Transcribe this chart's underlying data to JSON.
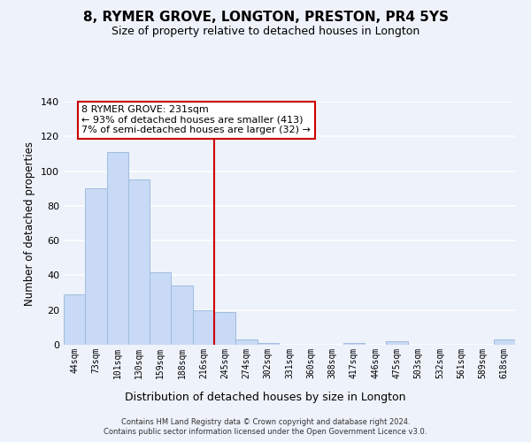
{
  "title": "8, RYMER GROVE, LONGTON, PRESTON, PR4 5YS",
  "subtitle": "Size of property relative to detached houses in Longton",
  "xlabel": "Distribution of detached houses by size in Longton",
  "ylabel": "Number of detached properties",
  "bar_labels": [
    "44sqm",
    "73sqm",
    "101sqm",
    "130sqm",
    "159sqm",
    "188sqm",
    "216sqm",
    "245sqm",
    "274sqm",
    "302sqm",
    "331sqm",
    "360sqm",
    "388sqm",
    "417sqm",
    "446sqm",
    "475sqm",
    "503sqm",
    "532sqm",
    "561sqm",
    "589sqm",
    "618sqm"
  ],
  "bar_values": [
    29,
    90,
    111,
    95,
    42,
    34,
    20,
    19,
    3,
    1,
    0,
    0,
    0,
    1,
    0,
    2,
    0,
    0,
    0,
    0,
    3
  ],
  "bar_color": "#c8daf5",
  "bar_edge_color": "#a0bce0",
  "ylim": [
    0,
    140
  ],
  "yticks": [
    0,
    20,
    40,
    60,
    80,
    100,
    120,
    140
  ],
  "property_line_x": 6.5,
  "property_line_color": "#cc0000",
  "annotation_title": "8 RYMER GROVE: 231sqm",
  "annotation_line1": "← 93% of detached houses are smaller (413)",
  "annotation_line2": "7% of semi-detached houses are larger (32) →",
  "annotation_box_color": "#ffffff",
  "annotation_box_edge": "#cc0000",
  "footer1": "Contains HM Land Registry data © Crown copyright and database right 2024.",
  "footer2": "Contains public sector information licensed under the Open Government Licence v3.0.",
  "background_color": "#eef2fa",
  "grid_color": "#ffffff"
}
